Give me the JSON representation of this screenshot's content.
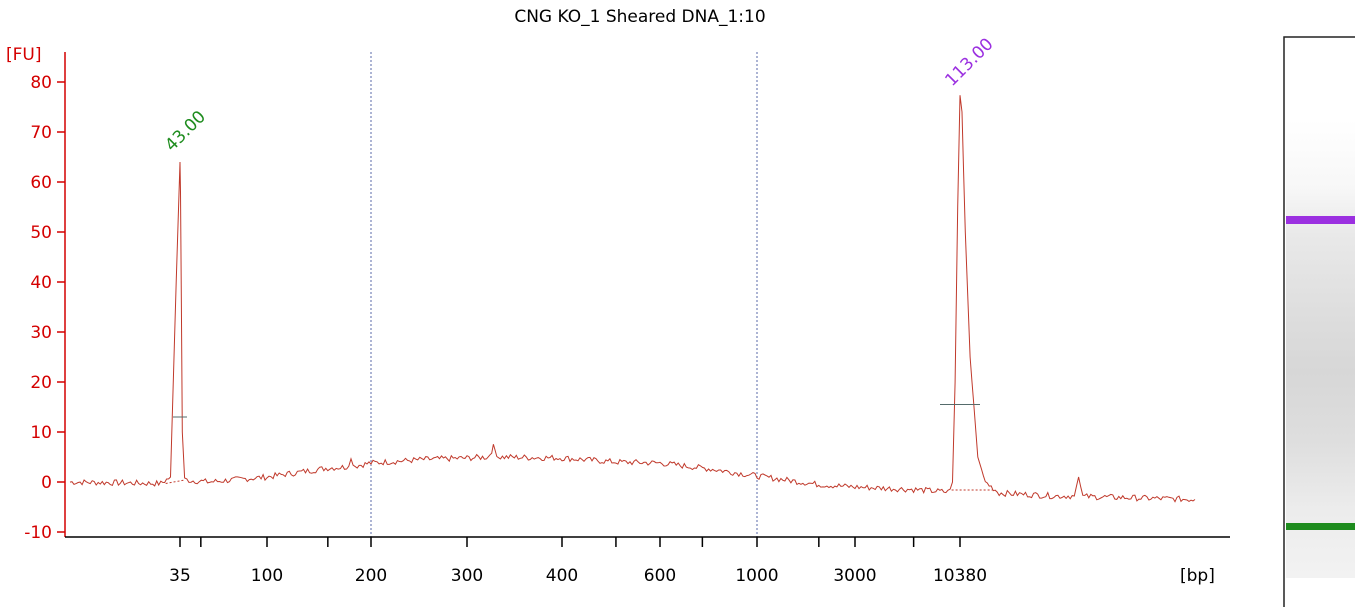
{
  "chart_data": {
    "type": "line",
    "title": "CNG KO_1 Sheared DNA_1:10",
    "ylabel": "[FU]",
    "xlabel": "[bp]",
    "ylim": [
      -11,
      82
    ],
    "y_ticks": [
      80,
      70,
      60,
      50,
      40,
      30,
      20,
      10,
      0,
      -10
    ],
    "x_tick_labels": [
      "35",
      "100",
      "200",
      "300",
      "400",
      "600",
      "1000",
      "3000",
      "10380"
    ],
    "x_tick_values": [
      35,
      100,
      200,
      300,
      400,
      600,
      1000,
      3000,
      10380
    ],
    "line_color": "#c0392b",
    "axis_color": "#d40000",
    "series": [
      {
        "values": [
          {
            "x": 25,
            "y": 0
          },
          {
            "x": 33,
            "y": -0.3
          },
          {
            "x": 34,
            "y": 1
          },
          {
            "x": 34.6,
            "y": 40
          },
          {
            "x": 35,
            "y": 64
          },
          {
            "x": 35.2,
            "y": 58
          },
          {
            "x": 35.6,
            "y": 35
          },
          {
            "x": 36,
            "y": 10
          },
          {
            "x": 37,
            "y": 0.5
          },
          {
            "x": 40,
            "y": 0.3
          },
          {
            "x": 50,
            "y": 0
          },
          {
            "x": 70,
            "y": 0.5
          },
          {
            "x": 100,
            "y": 1
          },
          {
            "x": 150,
            "y": 2.8
          },
          {
            "x": 170,
            "y": 3
          },
          {
            "x": 175,
            "y": 4.5
          },
          {
            "x": 180,
            "y": 3.2
          },
          {
            "x": 200,
            "y": 3.8
          },
          {
            "x": 250,
            "y": 4.5
          },
          {
            "x": 300,
            "y": 4.8
          },
          {
            "x": 320,
            "y": 5
          },
          {
            "x": 325,
            "y": 7
          },
          {
            "x": 330,
            "y": 5
          },
          {
            "x": 400,
            "y": 4.8
          },
          {
            "x": 500,
            "y": 4
          },
          {
            "x": 600,
            "y": 3.8
          },
          {
            "x": 800,
            "y": 2.5
          },
          {
            "x": 1000,
            "y": 1.2
          },
          {
            "x": 2000,
            "y": -0.5
          },
          {
            "x": 3000,
            "y": -1
          },
          {
            "x": 6000,
            "y": -1.5
          },
          {
            "x": 9000,
            "y": -2
          },
          {
            "x": 9500,
            "y": 0
          },
          {
            "x": 9800,
            "y": 20
          },
          {
            "x": 10100,
            "y": 55
          },
          {
            "x": 10380,
            "y": 77
          },
          {
            "x": 10500,
            "y": 74
          },
          {
            "x": 10700,
            "y": 50
          },
          {
            "x": 11000,
            "y": 25
          },
          {
            "x": 11500,
            "y": 5
          },
          {
            "x": 12000,
            "y": 0
          },
          {
            "x": 13000,
            "y": -2.2
          },
          {
            "x": 18000,
            "y": -2.8
          },
          {
            "x": 20000,
            "y": -2.8
          },
          {
            "x": 20500,
            "y": 1
          },
          {
            "x": 21000,
            "y": -2.9
          },
          {
            "x": 40000,
            "y": -3.5
          }
        ]
      }
    ],
    "peaks": [
      {
        "label": "43.00",
        "bp": 35,
        "fu": 64,
        "color": "#1e8c1e"
      },
      {
        "label": "113.00",
        "bp": 10380,
        "fu": 77,
        "color": "#9b30e0"
      }
    ],
    "vertical_guides_bp": [
      200,
      1000
    ],
    "grid": false
  },
  "gel_lane": {
    "bands": [
      {
        "name": "upper-marker",
        "color": "#9b30e0"
      },
      {
        "name": "lower-marker",
        "color": "#1e8c1e"
      }
    ]
  }
}
